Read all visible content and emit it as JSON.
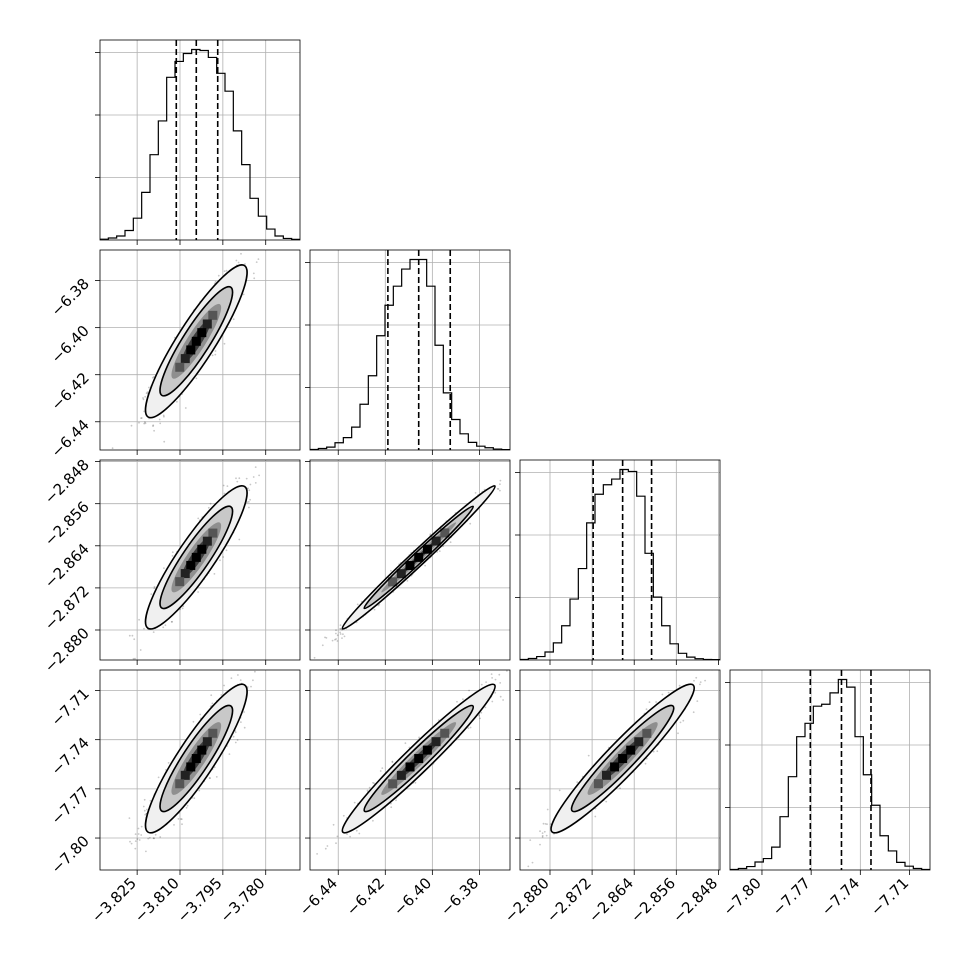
{
  "chart_data": {
    "type": "corner",
    "title": "",
    "grid": true,
    "quantiles": [
      0.16,
      0.5,
      0.84
    ],
    "parameters": [
      {
        "range": [
          -3.838,
          -3.768
        ],
        "ticks": [
          -3.825,
          -3.81,
          -3.795,
          -3.78
        ],
        "tick_labels": [
          "−3.825",
          "−3.810",
          "−3.795",
          "−3.780"
        ],
        "quantile_values": [
          -3.8113,
          -3.8043,
          -3.7968
        ]
      },
      {
        "range": [
          -6.452,
          -6.367
        ],
        "ticks": [
          -6.44,
          -6.42,
          -6.4,
          -6.38
        ],
        "tick_labels": [
          "−6.44",
          "−6.42",
          "−6.40",
          "−6.38"
        ],
        "quantile_values": [
          -6.4189,
          -6.4058,
          -6.3924
        ]
      },
      {
        "range": [
          -2.8857,
          -2.8477
        ],
        "ticks": [
          -2.88,
          -2.872,
          -2.864,
          -2.856,
          -2.848
        ],
        "tick_labels": [
          "−2.880",
          "−2.872",
          "−2.864",
          "−2.856",
          "−2.848"
        ],
        "quantile_values": [
          -2.8718,
          -2.8662,
          -2.8607
        ]
      },
      {
        "range": [
          -7.8195,
          -7.6975
        ],
        "ticks": [
          -7.8,
          -7.77,
          -7.74,
          -7.71
        ],
        "tick_labels": [
          "−7.80",
          "−7.77",
          "−7.74",
          "−7.71"
        ],
        "quantile_values": [
          -7.7705,
          -7.7515,
          -7.7335
        ]
      }
    ],
    "histograms": [
      [
        4,
        10,
        20,
        48,
        110,
        240,
        430,
        600,
        820,
        900,
        940,
        960,
        955,
        920,
        840,
        750,
        550,
        380,
        210,
        120,
        55,
        20,
        8,
        3
      ],
      [
        3,
        8,
        15,
        38,
        65,
        120,
        240,
        390,
        600,
        760,
        860,
        950,
        1000,
        1000,
        860,
        550,
        300,
        160,
        85,
        40,
        20,
        12,
        5,
        2
      ],
      [
        3,
        8,
        18,
        42,
        90,
        180,
        320,
        480,
        720,
        870,
        920,
        950,
        1000,
        990,
        860,
        560,
        330,
        180,
        85,
        35,
        15,
        7,
        3,
        2
      ],
      [
        3,
        8,
        18,
        42,
        60,
        120,
        280,
        490,
        700,
        770,
        860,
        870,
        930,
        1000,
        960,
        700,
        500,
        340,
        180,
        100,
        40,
        20,
        8,
        3
      ]
    ],
    "correlations": [
      [
        1.0,
        0.9,
        0.9,
        0.9
      ],
      [
        0.9,
        1.0,
        0.99,
        0.97
      ],
      [
        0.9,
        0.99,
        1.0,
        0.95
      ],
      [
        0.9,
        0.97,
        0.95,
        1.0
      ]
    ]
  }
}
